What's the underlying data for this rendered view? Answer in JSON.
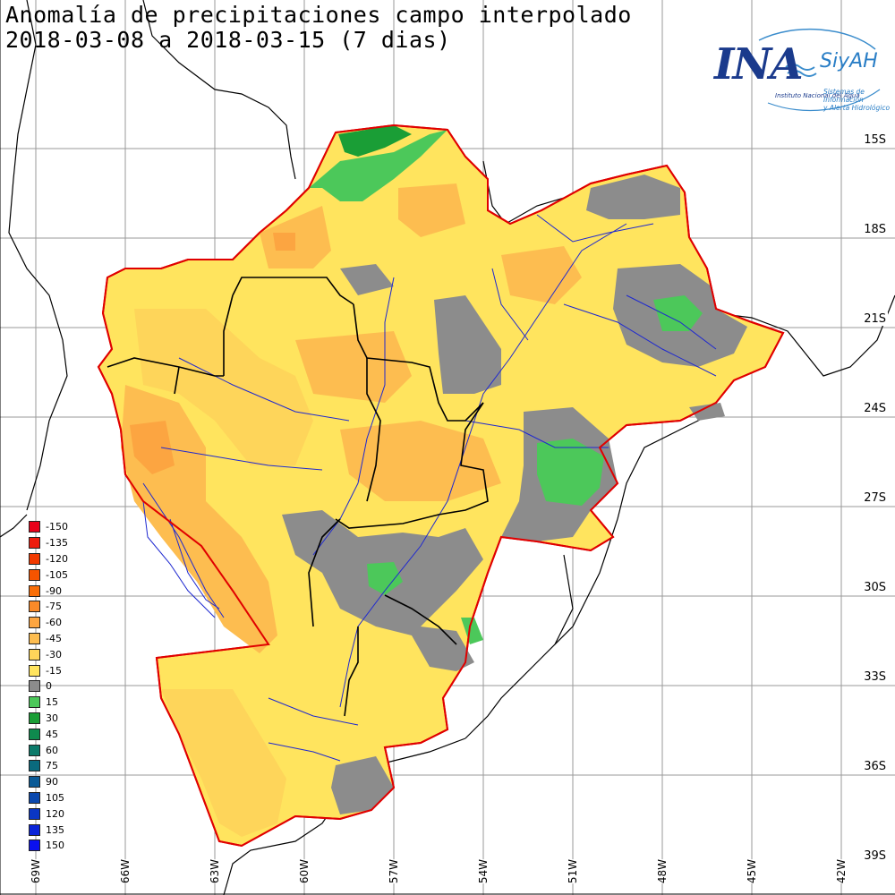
{
  "title": {
    "line1": "Anomalía de precipitaciones campo interpolado",
    "line2": "2018-03-08 a 2018-03-15 (7 dias)"
  },
  "logo": {
    "org": "INA",
    "system": "SiyAH",
    "org_full": "Instituto Nacional del Agua",
    "system_full_1": "Sistemas de Información",
    "system_full_2": "y Alerta Hidrológico"
  },
  "lat_labels": [
    "15S",
    "18S",
    "21S",
    "24S",
    "27S",
    "30S",
    "33S",
    "36S",
    "39S"
  ],
  "lon_labels": [
    "69W",
    "66W",
    "63W",
    "60W",
    "57W",
    "54W",
    "51W",
    "48W",
    "45W",
    "42W"
  ],
  "legend": [
    {
      "label": "-150",
      "color": "#e8001a"
    },
    {
      "label": "-135",
      "color": "#ee1d0e"
    },
    {
      "label": "-120",
      "color": "#f23a00"
    },
    {
      "label": "-105",
      "color": "#f65400"
    },
    {
      "label": "-90",
      "color": "#f86e08"
    },
    {
      "label": "-75",
      "color": "#fa8a28"
    },
    {
      "label": "-60",
      "color": "#fca541"
    },
    {
      "label": "-45",
      "color": "#fdbd50"
    },
    {
      "label": "-30",
      "color": "#fed55a"
    },
    {
      "label": "-15",
      "color": "#ffe45e"
    },
    {
      "label": "0",
      "color": "#8c8c8c"
    },
    {
      "label": "15",
      "color": "#4cc85a"
    },
    {
      "label": "30",
      "color": "#1a9e36"
    },
    {
      "label": "45",
      "color": "#0f8a4e"
    },
    {
      "label": "60",
      "color": "#0b7a6a"
    },
    {
      "label": "75",
      "color": "#0a6a7e"
    },
    {
      "label": "90",
      "color": "#0a5a96"
    },
    {
      "label": "105",
      "color": "#0a48ae"
    },
    {
      "label": "120",
      "color": "#0a36c4"
    },
    {
      "label": "135",
      "color": "#0a24d8"
    },
    {
      "label": "150",
      "color": "#0a10ee"
    }
  ],
  "colors": {
    "boundary": "#e00000",
    "rivers": "#1e28d0",
    "borders": "#000000",
    "grid": "#9a9a9a"
  }
}
